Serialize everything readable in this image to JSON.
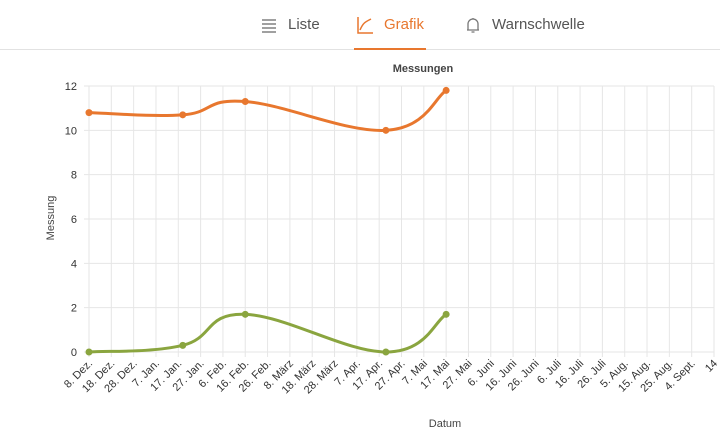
{
  "tabs": [
    {
      "label": "Liste",
      "icon": "list-icon"
    },
    {
      "label": "Grafik",
      "icon": "line-chart-icon"
    },
    {
      "label": "Warnschwelle",
      "icon": "bell-icon"
    }
  ],
  "active_tab": "Grafik",
  "colors": {
    "accent": "#e8772e",
    "series_a": "#e8772e",
    "series_b": "#8aa53f",
    "grid": "#e6e6e6"
  },
  "chart_data": {
    "type": "line",
    "title": "Messungen",
    "xlabel": "Datum",
    "ylabel": "Messung",
    "ylim": [
      0,
      12
    ],
    "yticks": [
      0,
      2,
      4,
      6,
      8,
      10,
      12
    ],
    "grid": true,
    "x_ticks": [
      "8. Dez.",
      "18. Dez.",
      "28. Dez.",
      "7. Jan.",
      "17. Jan.",
      "27. Jan.",
      "6. Feb.",
      "16. Feb.",
      "26. Feb.",
      "8. März",
      "18. März",
      "28. März",
      "7. Apr.",
      "17. Apr.",
      "27. Apr.",
      "7. Mai",
      "17. Mai",
      "27. Mai",
      "6. Juni",
      "16. Juni",
      "26. Juni",
      "6. Juli",
      "16. Juli",
      "26. Juli",
      "5. Aug.",
      "15. Aug.",
      "25. Aug.",
      "4. Sept.",
      "14"
    ],
    "series": [
      {
        "x": [
          "8. Dez.",
          "19. Jan.",
          "16. Feb.",
          "20. Apr.",
          "17. Mai"
        ],
        "values": [
          10.8,
          10.7,
          11.3,
          10.0,
          11.8
        ]
      },
      {
        "x": [
          "8. Dez.",
          "19. Jan.",
          "16. Feb.",
          "20. Apr.",
          "17. Mai"
        ],
        "values": [
          0.0,
          0.3,
          1.7,
          0.0,
          1.7
        ]
      }
    ]
  }
}
